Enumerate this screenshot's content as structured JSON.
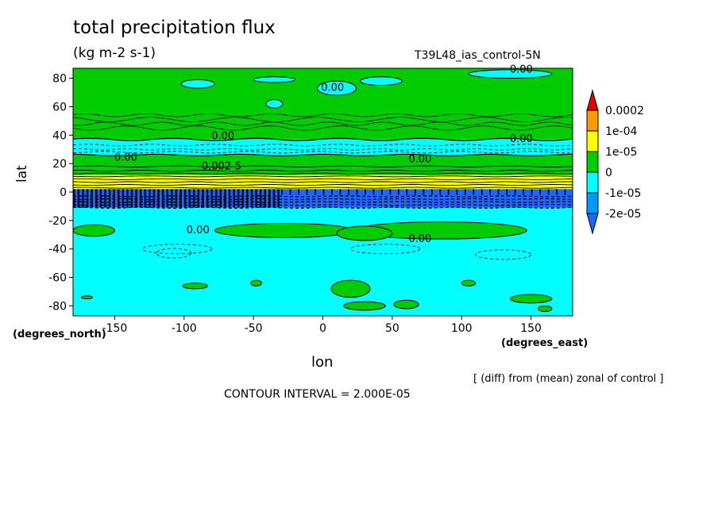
{
  "chart_data": {
    "type": "heatmap",
    "title": "total precipitation flux",
    "units": "(kg m-2 s-1)",
    "run_label": "T39L48_ias_control-5N",
    "xlabel": "lon",
    "ylabel": "lat",
    "x_caption": "(degrees_east)",
    "y_caption": "(degrees_north)",
    "xlim": [
      -180,
      180
    ],
    "ylim": [
      -87,
      87
    ],
    "x_ticks": [
      "-150",
      "-100",
      "-50",
      "0",
      "50",
      "100",
      "150"
    ],
    "x_tick_values": [
      -150,
      -100,
      -50,
      0,
      50,
      100,
      150
    ],
    "y_ticks": [
      "80",
      "60",
      "40",
      "20",
      "0",
      "-20",
      "-40",
      "-60",
      "-80"
    ],
    "y_tick_values": [
      80,
      60,
      40,
      20,
      0,
      -20,
      -40,
      -60,
      -80
    ],
    "colorbar": {
      "labels": [
        "0.0002",
        "1e-04",
        "1e-05",
        "0",
        "-1e-05",
        "-2e-05"
      ],
      "colors": [
        "#e60000",
        "#ff9900",
        "#ffff00",
        "#00cc00",
        "#00ffff",
        "#0099ff",
        "#1a66ff"
      ]
    },
    "contour_labels": [
      "0.00",
      "0.00",
      "0.00",
      "0.00",
      "0.00",
      "0.00",
      "0.00",
      "0.00",
      "0.002-5"
    ],
    "bands": [
      {
        "lat_top": 87,
        "lat_bottom": 37,
        "level": "0"
      },
      {
        "lat_top": 37,
        "lat_bottom": 26,
        "level": "-1e-05"
      },
      {
        "lat_top": 26,
        "lat_bottom": 12,
        "level": "0"
      },
      {
        "lat_top": 12,
        "lat_bottom": 2,
        "level": "1e-05"
      },
      {
        "lat_top": 2,
        "lat_bottom": -11,
        "level": "-2e-05"
      },
      {
        "lat_top": -11,
        "lat_bottom": -87,
        "level": "-1e-05"
      }
    ],
    "patches": [
      {
        "lon": -28,
        "lat": -27,
        "lon_half": 50,
        "lat_half": 5,
        "level": "0"
      },
      {
        "lon": 85,
        "lat": -27,
        "lon_half": 62,
        "lat_half": 6,
        "level": "0"
      },
      {
        "lon": -165,
        "lat": -27,
        "lon_half": 15,
        "lat_half": 4,
        "level": "0"
      },
      {
        "lon": 30,
        "lat": -29,
        "lon_half": 20,
        "lat_half": 5,
        "level": "0"
      },
      {
        "lon": -92,
        "lat": -66,
        "lon_half": 9,
        "lat_half": 2,
        "level": "0"
      },
      {
        "lon": -48,
        "lat": -64,
        "lon_half": 4,
        "lat_half": 2,
        "level": "0"
      },
      {
        "lon": 20,
        "lat": -68,
        "lon_half": 14,
        "lat_half": 6,
        "level": "0"
      },
      {
        "lon": 30,
        "lat": -80,
        "lon_half": 15,
        "lat_half": 3,
        "level": "0"
      },
      {
        "lon": 60,
        "lat": -79,
        "lon_half": 9,
        "lat_half": 3,
        "level": "0"
      },
      {
        "lon": 105,
        "lat": -64,
        "lon_half": 5,
        "lat_half": 2,
        "level": "0"
      },
      {
        "lon": 150,
        "lat": -75,
        "lon_half": 15,
        "lat_half": 3,
        "level": "0"
      },
      {
        "lon": -170,
        "lat": -74,
        "lon_half": 4,
        "lat_half": 1,
        "level": "0"
      },
      {
        "lon": 160,
        "lat": -82,
        "lon_half": 5,
        "lat_half": 2,
        "level": "0"
      },
      {
        "lon": -90,
        "lat": 76,
        "lon_half": 12,
        "lat_half": 3,
        "level": "-1e-05"
      },
      {
        "lon": -35,
        "lat": 79,
        "lon_half": 15,
        "lat_half": 2,
        "level": "-1e-05"
      },
      {
        "lon": 10,
        "lat": 73,
        "lon_half": 14,
        "lat_half": 5,
        "level": "-1e-05"
      },
      {
        "lon": 42,
        "lat": 78,
        "lon_half": 15,
        "lat_half": 3,
        "level": "-1e-05"
      },
      {
        "lon": -35,
        "lat": 62,
        "lon_half": 6,
        "lat_half": 3,
        "level": "-1e-05"
      },
      {
        "lon": 135,
        "lat": 83,
        "lon_half": 30,
        "lat_half": 3,
        "level": "-1e-05"
      }
    ],
    "label_positions": [
      {
        "lon": 7,
        "lat": 71
      },
      {
        "lon": 143,
        "lat": 84
      },
      {
        "lon": -72,
        "lat": 37
      },
      {
        "lon": 143,
        "lat": 35
      },
      {
        "lon": -142,
        "lat": 22
      },
      {
        "lon": 70,
        "lat": 21
      },
      {
        "lon": -90,
        "lat": -29
      },
      {
        "lon": 70,
        "lat": -35
      },
      {
        "lon": -73,
        "lat": 16
      }
    ]
  }
}
